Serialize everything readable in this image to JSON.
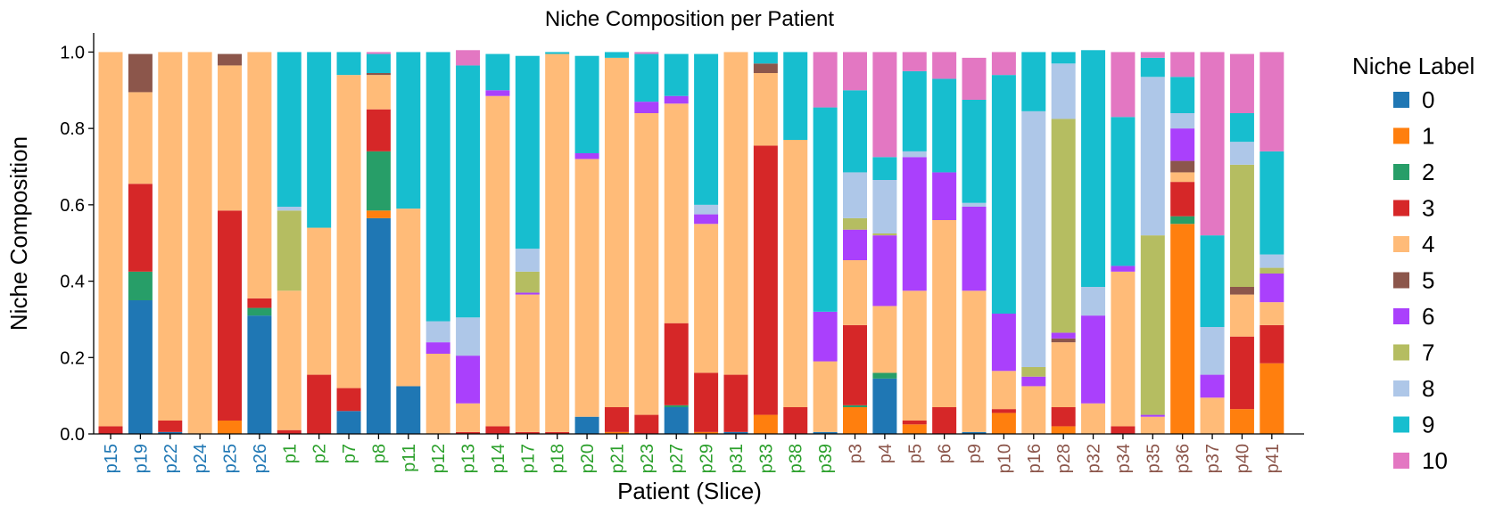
{
  "chart_data": {
    "type": "bar",
    "stacked": true,
    "title": "Niche Composition per Patient",
    "xlabel": "Patient (Slice)",
    "ylabel": "Niche Composition",
    "ylim": [
      0,
      1.05
    ],
    "yticks": [
      "0.0",
      "0.2",
      "0.4",
      "0.6",
      "0.8",
      "1.0"
    ],
    "legend_title": "Niche Label",
    "legend_position": "right",
    "grid": false,
    "categories": [
      "p15",
      "p19",
      "p22",
      "p24",
      "p25",
      "p26",
      "p1",
      "p2",
      "p7",
      "p8",
      "p11",
      "p12",
      "p13",
      "p14",
      "p17",
      "p18",
      "p20",
      "p21",
      "p23",
      "p27",
      "p29",
      "p31",
      "p33",
      "p38",
      "p39",
      "p3",
      "p4",
      "p5",
      "p6",
      "p9",
      "p10",
      "p16",
      "p28",
      "p32",
      "p34",
      "p35",
      "p36",
      "p37",
      "p40",
      "p41"
    ],
    "category_groups": [
      0,
      0,
      0,
      0,
      0,
      0,
      1,
      1,
      1,
      1,
      1,
      1,
      1,
      1,
      1,
      1,
      1,
      1,
      1,
      1,
      1,
      1,
      1,
      1,
      1,
      2,
      2,
      2,
      2,
      2,
      2,
      2,
      2,
      2,
      2,
      2,
      2,
      2,
      2,
      2
    ],
    "group_colors": [
      "#1f77b4",
      "#2ca02c",
      "#8c564b"
    ],
    "series": [
      {
        "name": "0",
        "color": "#1f77b4",
        "values": [
          0,
          0.35,
          0.005,
          0,
          0,
          0.31,
          0,
          0,
          0.06,
          0.565,
          0.125,
          0,
          0,
          0,
          0,
          0,
          0.045,
          0,
          0,
          0.07,
          0,
          0.005,
          0,
          0,
          0.005,
          0,
          0.145,
          0,
          0,
          0.005,
          0,
          0,
          0,
          0,
          0,
          0,
          0,
          0,
          0,
          0
        ]
      },
      {
        "name": "1",
        "color": "#ff7f0e",
        "values": [
          0,
          0,
          0,
          0,
          0.035,
          0,
          0,
          0,
          0,
          0.02,
          0,
          0,
          0,
          0,
          0,
          0,
          0,
          0.005,
          0,
          0,
          0.005,
          0,
          0.05,
          0,
          0,
          0.07,
          0,
          0.025,
          0,
          0,
          0.055,
          0,
          0.02,
          0,
          0,
          0,
          0.55,
          0,
          0.065,
          0.185
        ]
      },
      {
        "name": "2",
        "color": "#279e68",
        "values": [
          0,
          0.075,
          0,
          0,
          0,
          0.02,
          0,
          0,
          0,
          0.155,
          0,
          0,
          0,
          0,
          0,
          0,
          0,
          0,
          0,
          0.005,
          0,
          0,
          0,
          0,
          0,
          0.005,
          0.015,
          0,
          0,
          0,
          0,
          0,
          0,
          0,
          0,
          0,
          0.02,
          0,
          0,
          0
        ]
      },
      {
        "name": "3",
        "color": "#d62728",
        "values": [
          0.02,
          0.23,
          0.03,
          0,
          0.55,
          0.025,
          0.01,
          0.155,
          0.06,
          0.11,
          0,
          0,
          0.005,
          0.02,
          0.005,
          0.005,
          0,
          0.065,
          0.05,
          0.215,
          0.155,
          0.15,
          0.705,
          0.07,
          0,
          0.21,
          0,
          0.01,
          0.07,
          0,
          0.01,
          0,
          0.05,
          0,
          0.02,
          0,
          0.09,
          0,
          0.19,
          0.1
        ]
      },
      {
        "name": "4",
        "color": "#ffbb78",
        "values": [
          0.98,
          0.24,
          0.965,
          1.0,
          0.38,
          0.645,
          0.365,
          0.385,
          0.82,
          0.09,
          0.465,
          0.21,
          0.075,
          0.865,
          0.36,
          0.99,
          0.675,
          0.915,
          0.79,
          0.575,
          0.39,
          0.845,
          0.19,
          0.7,
          0.185,
          0.17,
          0.175,
          0.34,
          0.49,
          0.37,
          0.1,
          0.125,
          0.17,
          0.08,
          0.405,
          0.045,
          0.025,
          0.095,
          0.11,
          0.06
        ]
      },
      {
        "name": "5",
        "color": "#8c564b",
        "values": [
          0,
          0.1,
          0,
          0,
          0.03,
          0,
          0,
          0,
          0,
          0.005,
          0,
          0,
          0,
          0,
          0,
          0,
          0,
          0,
          0,
          0,
          0,
          0,
          0.025,
          0,
          0,
          0,
          0,
          0,
          0,
          0,
          0,
          0,
          0.01,
          0,
          0,
          0,
          0.03,
          0,
          0.02,
          0
        ]
      },
      {
        "name": "6",
        "color": "#aa40fc",
        "values": [
          0,
          0,
          0,
          0,
          0,
          0,
          0,
          0,
          0,
          0,
          0,
          0.03,
          0.125,
          0.015,
          0.005,
          0,
          0.015,
          0,
          0.03,
          0.02,
          0.025,
          0,
          0,
          0,
          0.13,
          0.08,
          0.185,
          0.35,
          0.125,
          0.22,
          0.15,
          0.025,
          0.015,
          0.23,
          0.015,
          0.005,
          0.085,
          0.06,
          0,
          0.075
        ]
      },
      {
        "name": "7",
        "color": "#b5bd61",
        "values": [
          0,
          0,
          0,
          0,
          0,
          0,
          0.21,
          0,
          0,
          0,
          0,
          0,
          0,
          0,
          0.055,
          0,
          0,
          0,
          0,
          0,
          0,
          0,
          0,
          0,
          0,
          0.03,
          0.005,
          0,
          0,
          0,
          0,
          0.025,
          0.56,
          0,
          0,
          0.47,
          0,
          0,
          0.32,
          0.015
        ]
      },
      {
        "name": "8",
        "color": "#aec7e8",
        "values": [
          0,
          0,
          0,
          0,
          0,
          0,
          0.01,
          0,
          0,
          0,
          0,
          0.055,
          0.1,
          0,
          0.06,
          0,
          0,
          0,
          0,
          0,
          0.025,
          0,
          0,
          0,
          0,
          0.12,
          0.14,
          0.015,
          0,
          0.01,
          0,
          0.67,
          0.145,
          0.075,
          0,
          0.415,
          0.04,
          0.125,
          0.06,
          0.035
        ]
      },
      {
        "name": "9",
        "color": "#17becf",
        "values": [
          0,
          0,
          0,
          0,
          0,
          0,
          0.405,
          0.46,
          0.06,
          0.05,
          0.41,
          0.705,
          0.66,
          0.095,
          0.505,
          0.005,
          0.255,
          0.015,
          0.125,
          0.11,
          0.395,
          0,
          0.03,
          0.23,
          0.535,
          0.215,
          0.06,
          0.21,
          0.245,
          0.27,
          0.625,
          0.155,
          0.03,
          0.62,
          0.39,
          0.05,
          0.095,
          0.24,
          0.075,
          0.27
        ]
      },
      {
        "name": "10",
        "color": "#e377c2",
        "values": [
          0,
          0,
          0,
          0,
          0,
          0,
          0,
          0,
          0,
          0.005,
          0,
          0,
          0.04,
          0,
          0,
          0,
          0,
          0,
          0.005,
          0,
          0,
          0,
          0,
          0,
          0.145,
          0.1,
          0.275,
          0.05,
          0.07,
          0.11,
          0.06,
          0,
          0,
          0,
          0.17,
          0.015,
          0.065,
          0.48,
          0.155,
          0.26
        ]
      }
    ]
  }
}
